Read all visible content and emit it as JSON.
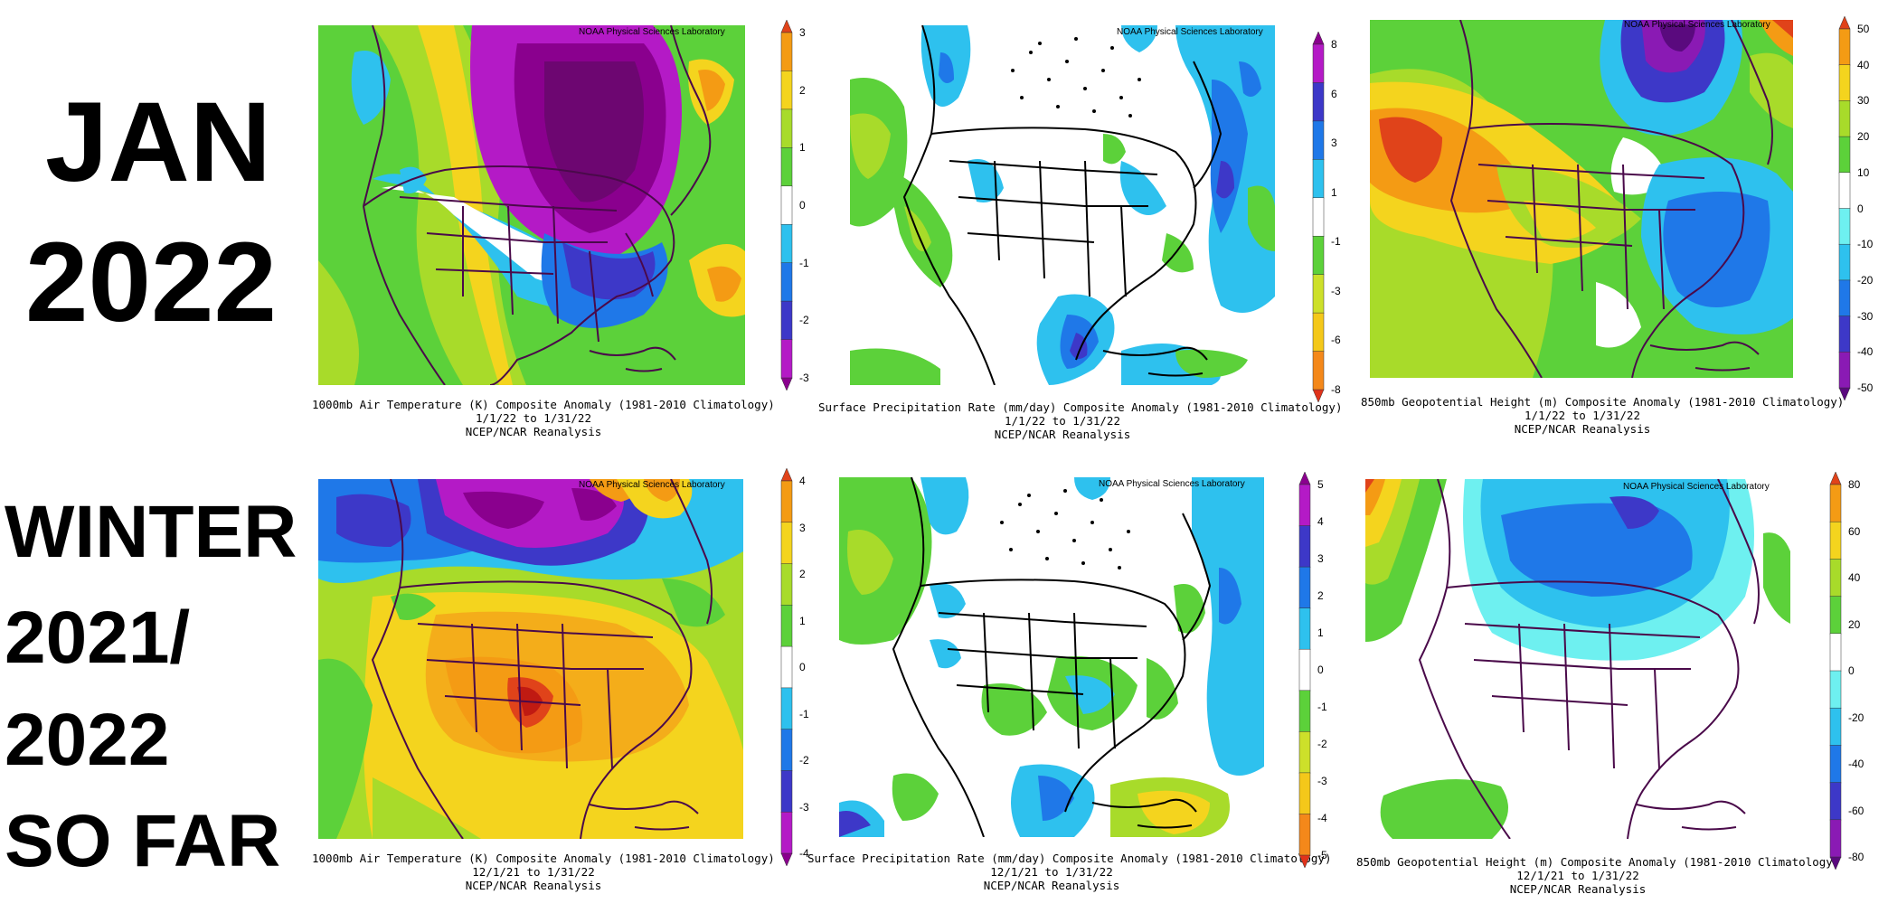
{
  "row_titles": {
    "jan": "JAN",
    "jan_year": "2022",
    "winter": "WINTER",
    "winter_year1": "2021/",
    "winter_year2": "2022",
    "so_far": "SO FAR"
  },
  "credit": "NOAA Physical Sciences Laboratory",
  "source": "NCEP/NCAR Reanalysis",
  "palettes": {
    "temp": [
      "#8a008e",
      "#b41ac6",
      "#3d38c8",
      "#1f78e8",
      "#2ec1ee",
      "#ffffff",
      "#5cd13a",
      "#a8db2a",
      "#f4d41e",
      "#f49b14",
      "#e0431a"
    ],
    "precip": [
      "#e0321a",
      "#f4881a",
      "#f4c81a",
      "#cde02a",
      "#5cd13a",
      "#ffffff",
      "#2ec1ee",
      "#1f78e8",
      "#3d38c8",
      "#b41ac6",
      "#8a008e"
    ],
    "height": [
      "#5a0a7e",
      "#8a1ab4",
      "#3d38c8",
      "#1f78e8",
      "#2ec1ee",
      "#6ef0f0",
      "#ffffff",
      "#5cd13a",
      "#a8db2a",
      "#f4d41e",
      "#f49b14",
      "#e0431a"
    ]
  },
  "panels": [
    {
      "id": "jan-temp",
      "caption_line1": "1000mb Air Temperature (K) Composite Anomaly (1981-2010 Climatology)",
      "caption_line2": "1/1/22  to 1/31/22",
      "colorbar_labels": [
        "3",
        "2",
        "1",
        "0",
        "-1",
        "-2",
        "-3"
      ],
      "palette": "temp"
    },
    {
      "id": "jan-precip",
      "caption_line1": "Surface Precipitation Rate (mm/day) Composite Anomaly (1981-2010 Climatology)",
      "caption_line2": "1/1/22  to 1/31/22",
      "colorbar_labels": [
        "8",
        "6",
        "3",
        "1",
        "-1",
        "-3",
        "-6",
        "-8"
      ],
      "palette": "precip"
    },
    {
      "id": "jan-height",
      "caption_line1": "850mb Geopotential Height (m) Composite Anomaly (1981-2010 Climatology)",
      "caption_line2": "1/1/22  to 1/31/22",
      "colorbar_labels": [
        "50",
        "40",
        "30",
        "20",
        "10",
        "0",
        "-10",
        "-20",
        "-30",
        "-40",
        "-50"
      ],
      "palette": "height"
    },
    {
      "id": "winter-temp",
      "caption_line1": "1000mb Air Temperature (K) Composite Anomaly (1981-2010 Climatology)",
      "caption_line2": "12/1/21  to 1/31/22",
      "colorbar_labels": [
        "4",
        "3",
        "2",
        "1",
        "0",
        "-1",
        "-2",
        "-3",
        "-4"
      ],
      "palette": "temp"
    },
    {
      "id": "winter-precip",
      "caption_line1": "Surface Precipitation Rate (mm/day) Composite Anomaly (1981-2010 Climatology)",
      "caption_line2": "12/1/21  to 1/31/22",
      "colorbar_labels": [
        "5",
        "4",
        "3",
        "2",
        "1",
        "0",
        "-1",
        "-2",
        "-3",
        "-4",
        "-5"
      ],
      "palette": "precip"
    },
    {
      "id": "winter-height",
      "caption_line1": "850mb Geopotential Height (m) Composite Anomaly (1981-2010 Climatology)",
      "caption_line2": "12/1/21  to 1/31/22",
      "colorbar_labels": [
        "80",
        "60",
        "40",
        "20",
        "0",
        "-20",
        "-40",
        "-60",
        "-80"
      ],
      "palette": "height"
    }
  ]
}
